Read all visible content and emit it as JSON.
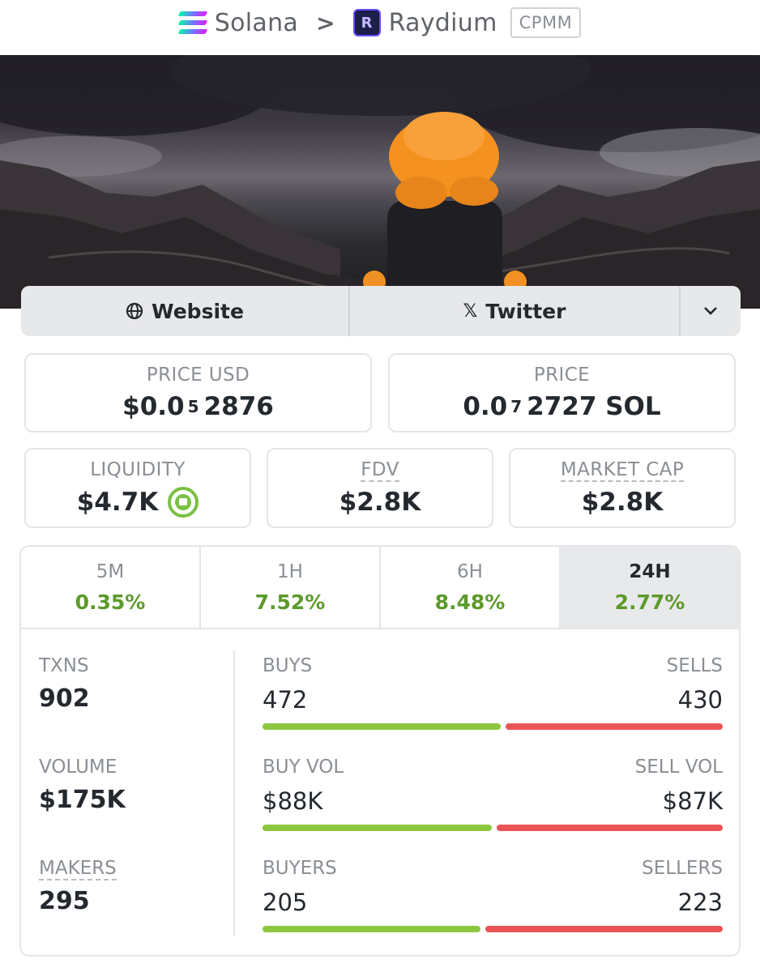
{
  "breadcrumb": {
    "chain": "Solana",
    "separator": ">",
    "dex": "Raydium",
    "dex_icon_letter": "R",
    "pool_type": "CPMM"
  },
  "links": {
    "website_label": "Website",
    "twitter_label": "Twitter",
    "twitter_glyph": "𝕏"
  },
  "price_usd": {
    "label": "PRICE USD",
    "prefix": "$0.0",
    "zeros": "5",
    "digits": "2876"
  },
  "price_native": {
    "label": "PRICE",
    "prefix": "0.0",
    "zeros": "7",
    "digits": "2727 SOL"
  },
  "liquidity": {
    "label": "LIQUIDITY",
    "value": "$4.7K",
    "locked": true
  },
  "fdv": {
    "label": "FDV",
    "value": "$2.8K"
  },
  "market_cap": {
    "label": "MARKET CAP",
    "value": "$2.8K"
  },
  "timeframes": [
    {
      "label": "5M",
      "change": "0.35%"
    },
    {
      "label": "1H",
      "change": "7.52%"
    },
    {
      "label": "6H",
      "change": "8.48%"
    },
    {
      "label": "24H",
      "change": "2.77%",
      "active": true
    }
  ],
  "stats": {
    "txns": {
      "label": "TXNS",
      "value": "902"
    },
    "volume": {
      "label": "VOLUME",
      "value": "$175K"
    },
    "makers": {
      "label": "MAKERS",
      "value": "295"
    }
  },
  "rows": {
    "txns": {
      "left_label": "BUYS",
      "right_label": "SELLS",
      "left_value": "472",
      "right_value": "430",
      "buy_fraction": 0.523
    },
    "volume": {
      "left_label": "BUY VOL",
      "right_label": "SELL VOL",
      "left_value": "$88K",
      "right_value": "$87K",
      "buy_fraction": 0.503
    },
    "makers": {
      "left_label": "BUYERS",
      "right_label": "SELLERS",
      "left_value": "205",
      "right_value": "223",
      "buy_fraction": 0.479
    }
  },
  "colors": {
    "positive": "#5c9a2a",
    "buy_bar": "#8cc63f",
    "sell_bar": "#ea5455",
    "lock": "#7bc043"
  }
}
